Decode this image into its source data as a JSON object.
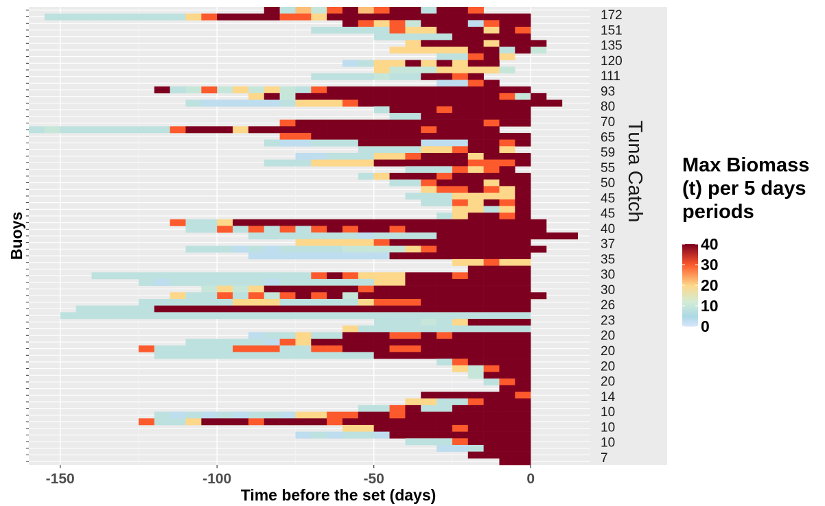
{
  "chart_data": {
    "type": "heatmap",
    "title": "",
    "xlabel": "Time before the set (days)",
    "ylabel": "Buoys",
    "secondary_axis_title": "Tuna Catch",
    "xlim": [
      -160,
      19
    ],
    "x_ticks": [
      -150,
      -100,
      -50,
      0
    ],
    "bin_width_days": 5,
    "legend_title": [
      "Max Biomass",
      "(t) per 5 days",
      "periods"
    ],
    "legend_position": "right",
    "legend_ticks": [
      40,
      30,
      20,
      10,
      0
    ],
    "color_limits": [
      0,
      40
    ],
    "color_stops": [
      {
        "value": 0,
        "color": "#d8e5fb"
      },
      {
        "value": 5,
        "color": "#add8e6"
      },
      {
        "value": 12,
        "color": "#d2ecd5"
      },
      {
        "value": 20,
        "color": "#fdd78a"
      },
      {
        "value": 30,
        "color": "#fc5a2c"
      },
      {
        "value": 40,
        "color": "#7e0020"
      }
    ],
    "grid": true,
    "catch_labels": [
      "172",
      "151",
      "135",
      "120",
      "111",
      "93",
      "80",
      "70",
      "65",
      "59",
      "55",
      "50",
      "45",
      "45",
      "40",
      "37",
      "35",
      "30",
      "30",
      "26",
      "23",
      "20",
      "20",
      "20",
      "20",
      "14",
      "10",
      "10",
      "10",
      "7"
    ],
    "rows": [
      {
        "start": -85,
        "values": [
          40,
          8,
          22,
          10,
          30,
          40,
          22,
          30,
          40,
          40,
          8,
          40,
          40,
          30
        ]
      },
      {
        "start": -155,
        "values": [
          8,
          8,
          8,
          8,
          8,
          8,
          8,
          8,
          8,
          20,
          30,
          40,
          40,
          40,
          40,
          30,
          30,
          20,
          40,
          40,
          40,
          40,
          40,
          40,
          40,
          40,
          40,
          40,
          40,
          40,
          40
        ]
      },
      {
        "start": -60,
        "values": [
          40,
          30,
          20,
          30,
          10,
          40,
          40,
          40,
          3,
          30,
          40,
          40
        ]
      },
      {
        "start": -70,
        "values": [
          8,
          8,
          8,
          8,
          8,
          30,
          20,
          20,
          40,
          40,
          40,
          20,
          40,
          30
        ]
      },
      {
        "start": -50,
        "values": [
          8,
          8,
          8,
          8,
          8,
          40,
          40,
          40,
          40,
          40
        ]
      },
      {
        "start": -40,
        "values": [
          20,
          40,
          40,
          40,
          40,
          20,
          40,
          40,
          40
        ]
      },
      {
        "start": -45,
        "values": [
          20,
          20,
          20,
          20,
          20,
          40,
          40,
          8,
          40,
          10
        ]
      },
      {
        "start": -30,
        "values": [
          8,
          8,
          30,
          40,
          20
        ]
      },
      {
        "start": -60,
        "values": [
          3,
          8,
          20,
          20,
          40,
          20,
          40,
          20,
          40,
          40
        ]
      },
      {
        "start": -50,
        "values": [
          20,
          10,
          10,
          10,
          20,
          20,
          20,
          20,
          10
        ]
      },
      {
        "start": -70,
        "values": [
          8,
          8,
          8,
          8,
          10,
          8,
          8,
          40,
          40,
          30,
          40
        ]
      },
      {
        "start": -30,
        "values": [
          3,
          3,
          30,
          40
        ]
      },
      {
        "start": -120,
        "values": [
          40,
          8,
          10,
          30,
          10,
          20,
          10,
          20,
          10,
          8,
          30,
          40,
          40,
          40,
          40,
          40,
          40,
          40,
          40,
          40,
          40,
          40,
          40,
          40
        ]
      },
      {
        "start": -90,
        "values": [
          20,
          40,
          10,
          40,
          40,
          40,
          40,
          40,
          40,
          40,
          40,
          40,
          40,
          40,
          40,
          40,
          30,
          10,
          40
        ]
      },
      {
        "start": -110,
        "values": [
          8,
          3,
          3,
          3,
          3,
          3,
          8,
          20,
          20,
          20,
          30,
          40,
          40,
          40,
          40,
          40,
          40,
          40,
          40,
          40,
          40,
          40,
          40,
          40
        ]
      },
      {
        "start": -50,
        "values": [
          8,
          40,
          40,
          40,
          30,
          40,
          40,
          40,
          40,
          40
        ]
      },
      {
        "start": -45,
        "values": [
          8,
          8,
          40,
          40,
          40,
          40,
          40,
          40,
          40
        ]
      },
      {
        "start": -80,
        "values": [
          30,
          40,
          40,
          40,
          40,
          40,
          40,
          40,
          40,
          40,
          40,
          40,
          40,
          30,
          40,
          40
        ]
      },
      {
        "start": -160,
        "values": [
          8,
          10,
          8,
          8,
          8,
          8,
          8,
          8,
          8,
          30,
          40,
          40,
          40,
          20,
          40,
          40,
          40,
          40,
          40,
          40,
          40,
          40,
          40,
          40,
          40,
          30,
          40,
          40,
          40,
          40
        ]
      },
      {
        "start": -80,
        "values": [
          30,
          30,
          40,
          40,
          40,
          40,
          40,
          40,
          40,
          40,
          40,
          40,
          40,
          40,
          40,
          40
        ]
      },
      {
        "start": -85,
        "values": [
          8,
          3,
          3,
          8,
          8,
          8,
          40,
          40,
          40,
          40,
          3,
          3,
          3,
          40,
          40,
          30,
          40
        ]
      },
      {
        "start": -55,
        "values": [
          8,
          8,
          8,
          8,
          20,
          20,
          30,
          40,
          40,
          20
        ]
      },
      {
        "start": -75,
        "values": [
          3,
          3,
          8,
          8,
          8,
          20,
          20,
          30,
          40,
          40,
          40,
          20,
          40,
          40,
          40
        ]
      },
      {
        "start": -85,
        "values": [
          8,
          8,
          8,
          20,
          20,
          20,
          20,
          40,
          40,
          40,
          40,
          40,
          40,
          30,
          30,
          30,
          40
        ]
      },
      {
        "start": -40,
        "values": [
          8,
          8,
          8,
          30,
          20,
          30,
          40
        ]
      },
      {
        "start": -55,
        "values": [
          8,
          20,
          40,
          40,
          40,
          30,
          40,
          40,
          40,
          40,
          40
        ]
      },
      {
        "start": -45,
        "values": [
          8,
          8,
          30,
          40,
          40,
          40,
          20,
          40,
          40
        ]
      },
      {
        "start": -35,
        "values": [
          20,
          30,
          30,
          40,
          30,
          20,
          40
        ]
      },
      {
        "start": -40,
        "values": [
          8,
          8,
          8,
          20,
          20,
          20,
          20,
          40
        ]
      },
      {
        "start": -35,
        "values": [
          8,
          8,
          30,
          20,
          40,
          30,
          40
        ]
      },
      {
        "start": -25,
        "values": [
          20,
          20,
          8,
          20,
          40
        ]
      },
      {
        "start": -30,
        "values": [
          8,
          20,
          40,
          40,
          30,
          40
        ]
      },
      {
        "start": -115,
        "values": [
          30,
          8,
          8,
          20,
          40,
          40,
          40,
          40,
          40,
          40,
          40,
          40,
          40,
          40,
          40,
          40,
          40,
          40,
          40,
          40,
          40,
          40,
          40,
          40
        ]
      },
      {
        "start": -110,
        "values": [
          8,
          8,
          30,
          8,
          30,
          8,
          30,
          8,
          30,
          40,
          30,
          40,
          40,
          30,
          40,
          40,
          40,
          40,
          40,
          40,
          40,
          40,
          40
        ]
      },
      {
        "start": -90,
        "values": [
          8,
          8,
          8,
          8,
          8,
          8,
          8,
          3,
          8,
          8,
          8,
          8,
          40,
          40,
          40,
          40,
          40,
          40,
          40,
          40,
          40
        ]
      },
      {
        "start": -75,
        "values": [
          20,
          20,
          20,
          20,
          20,
          30,
          40,
          40,
          40,
          40,
          40,
          40,
          40,
          40,
          40
        ]
      },
      {
        "start": -110,
        "values": [
          8,
          8,
          8,
          3,
          8,
          3,
          8,
          8,
          8,
          8,
          10,
          10,
          10,
          10,
          20,
          30,
          40,
          40,
          40,
          40,
          40,
          40,
          40
        ]
      },
      {
        "start": -90,
        "values": [
          3,
          3,
          3,
          3,
          3,
          3,
          3,
          3,
          3,
          40,
          40,
          40,
          40,
          40,
          40,
          40,
          40,
          40
        ]
      },
      {
        "start": -25,
        "values": [
          20,
          20,
          30,
          20,
          20
        ]
      },
      {
        "start": -20,
        "values": [
          40,
          40,
          40,
          40
        ]
      },
      {
        "start": -140,
        "values": [
          8,
          8,
          8,
          8,
          8,
          8,
          8,
          8,
          8,
          8,
          8,
          8,
          8,
          8,
          30,
          40,
          30,
          20,
          20,
          20,
          40,
          40,
          40,
          30,
          40,
          40,
          40,
          40
        ]
      },
      {
        "start": -125,
        "values": [
          8,
          3,
          8,
          8,
          8,
          8,
          8,
          8,
          3,
          8,
          8,
          8,
          8,
          8,
          8,
          20,
          20,
          40,
          40,
          40,
          40,
          40,
          40,
          40,
          40
        ]
      },
      {
        "start": -105,
        "values": [
          10,
          20,
          10,
          20,
          40,
          40,
          40,
          40,
          40,
          40,
          30,
          40,
          40,
          40,
          40,
          40,
          40,
          40,
          40,
          40,
          40
        ]
      },
      {
        "start": -115,
        "values": [
          20,
          8,
          8,
          30,
          8,
          30,
          10,
          30,
          40,
          30,
          40,
          10,
          40,
          40,
          40,
          40,
          40,
          40,
          40,
          40,
          40,
          40,
          40,
          40
        ]
      },
      {
        "start": -125,
        "values": [
          8,
          8,
          8,
          8,
          8,
          8,
          20,
          20,
          20,
          8,
          8,
          8,
          8,
          8,
          20,
          30,
          30,
          30,
          40,
          40,
          40,
          40,
          40,
          40,
          40
        ]
      },
      {
        "start": -145,
        "values": [
          8,
          8,
          8,
          8,
          8,
          40,
          40,
          40,
          40,
          40,
          40,
          40,
          40,
          40,
          40,
          40,
          40,
          40,
          40,
          40,
          40,
          40,
          40,
          40,
          40,
          40,
          40,
          40,
          40
        ]
      },
      {
        "start": -150,
        "values": [
          8,
          8,
          8,
          8,
          8,
          8,
          8,
          8,
          8,
          8,
          8,
          8,
          8,
          8,
          8,
          8,
          8,
          8,
          8,
          8,
          8,
          8,
          8,
          8,
          8,
          8,
          8,
          8,
          8,
          8
        ]
      },
      {
        "start": -50,
        "values": [
          8,
          8,
          8,
          10,
          8,
          20,
          40,
          40,
          40,
          40
        ]
      },
      {
        "start": -60,
        "values": [
          20,
          8,
          8,
          8,
          8,
          8,
          8,
          8,
          8,
          8,
          8,
          8
        ]
      },
      {
        "start": -90,
        "values": [
          3,
          8,
          8,
          20,
          8,
          8,
          40,
          40,
          40,
          30,
          30,
          40,
          30,
          40,
          40,
          40,
          40,
          40
        ]
      },
      {
        "start": -110,
        "values": [
          8,
          8,
          8,
          8,
          8,
          3,
          30,
          20,
          40,
          40,
          40,
          40,
          40,
          40,
          40,
          40,
          40,
          40,
          40,
          40,
          40,
          40
        ]
      },
      {
        "start": -125,
        "values": [
          30,
          8,
          8,
          8,
          8,
          8,
          30,
          30,
          30,
          8,
          8,
          30,
          30,
          40,
          40,
          40,
          30,
          30,
          40,
          40,
          40,
          40,
          40,
          40,
          40
        ]
      },
      {
        "start": -120,
        "values": [
          8,
          8,
          8,
          8,
          8,
          8,
          8,
          8,
          8,
          8,
          8,
          8,
          8,
          8,
          40,
          40,
          40,
          40,
          40,
          40,
          40,
          40,
          40,
          40
        ]
      },
      {
        "start": -30,
        "values": [
          8,
          30,
          40,
          40,
          40,
          40
        ]
      },
      {
        "start": -25,
        "values": [
          20,
          10,
          30,
          40,
          40
        ]
      },
      {
        "start": -20,
        "values": [
          10,
          40,
          40,
          40
        ]
      },
      {
        "start": -15,
        "values": [
          8,
          30,
          40
        ]
      },
      {
        "start": -10,
        "values": [
          40,
          40
        ]
      },
      {
        "start": -35,
        "values": [
          40,
          40,
          40,
          40,
          40,
          40,
          30
        ]
      },
      {
        "start": -40,
        "values": [
          20,
          20,
          8,
          8,
          30,
          40,
          40,
          40
        ]
      },
      {
        "start": -55,
        "values": [
          8,
          8,
          30,
          40,
          8,
          8,
          40,
          40,
          40,
          40,
          40
        ]
      },
      {
        "start": -120,
        "values": [
          8,
          3,
          8,
          3,
          8,
          3,
          8,
          8,
          3,
          20,
          20,
          30,
          30,
          40,
          40,
          30,
          40,
          40,
          40,
          40,
          40,
          40,
          40,
          40
        ]
      },
      {
        "start": -125,
        "values": [
          30,
          8,
          8,
          20,
          40,
          40,
          40,
          30,
          40,
          40,
          40,
          40,
          30,
          40,
          40,
          40,
          40,
          40,
          40,
          40,
          40,
          40,
          40,
          40,
          40
        ]
      },
      {
        "start": -60,
        "values": [
          20,
          20,
          40,
          40,
          40,
          40,
          40,
          30,
          40,
          40,
          40,
          40
        ]
      },
      {
        "start": -75,
        "values": [
          3,
          8,
          3,
          8,
          8,
          3,
          40,
          40,
          40,
          40,
          40,
          40,
          40,
          40,
          40
        ]
      },
      {
        "start": -40,
        "values": [
          8,
          8,
          8,
          30,
          40,
          40,
          40,
          40
        ]
      },
      {
        "start": -30,
        "values": [
          3,
          3,
          8,
          40,
          40,
          40
        ]
      },
      {
        "start": -20,
        "values": [
          40,
          40,
          40,
          40
        ]
      },
      {
        "start": -10,
        "values": [
          40,
          40
        ]
      }
    ]
  }
}
